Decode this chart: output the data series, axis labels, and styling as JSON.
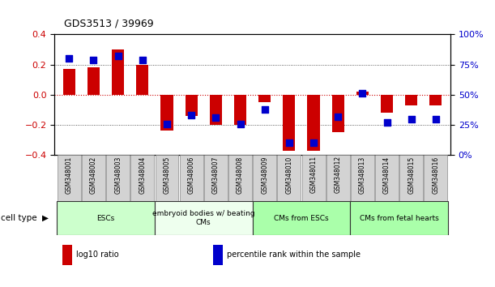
{
  "title": "GDS3513 / 39969",
  "samples": [
    "GSM348001",
    "GSM348002",
    "GSM348003",
    "GSM348004",
    "GSM348005",
    "GSM348006",
    "GSM348007",
    "GSM348008",
    "GSM348009",
    "GSM348010",
    "GSM348011",
    "GSM348012",
    "GSM348013",
    "GSM348014",
    "GSM348015",
    "GSM348016"
  ],
  "log10_ratio": [
    0.17,
    0.18,
    0.3,
    0.2,
    -0.24,
    -0.14,
    -0.2,
    -0.2,
    -0.05,
    -0.37,
    -0.37,
    -0.25,
    0.02,
    -0.12,
    -0.07,
    -0.07
  ],
  "percentile_rank": [
    80,
    79,
    82,
    79,
    26,
    33,
    31,
    26,
    38,
    10,
    10,
    32,
    51,
    27,
    30,
    30
  ],
  "bar_color": "#cc0000",
  "dot_color": "#0000cc",
  "ylim_left": [
    -0.4,
    0.4
  ],
  "ylim_right": [
    0,
    100
  ],
  "yticks_left": [
    -0.4,
    -0.2,
    0.0,
    0.2,
    0.4
  ],
  "yticks_right": [
    0,
    25,
    50,
    75,
    100
  ],
  "ytick_labels_right": [
    "0%",
    "25%",
    "50%",
    "75%",
    "100%"
  ],
  "hline_zero_color": "#cc0000",
  "hline_dotted_color": "#333333",
  "cell_type_groups": [
    {
      "label": "ESCs",
      "start": 0,
      "end": 3,
      "color": "#ccffcc"
    },
    {
      "label": "embryoid bodies w/ beating\nCMs",
      "start": 4,
      "end": 7,
      "color": "#eeffee"
    },
    {
      "label": "CMs from ESCs",
      "start": 8,
      "end": 11,
      "color": "#aaffaa"
    },
    {
      "label": "CMs from fetal hearts",
      "start": 12,
      "end": 15,
      "color": "#aaffaa"
    }
  ],
  "cell_type_label": "cell type",
  "legend_items": [
    {
      "label": "log10 ratio",
      "color": "#cc0000"
    },
    {
      "label": "percentile rank within the sample",
      "color": "#0000cc"
    }
  ],
  "background_color": "#ffffff",
  "bar_width": 0.5,
  "dot_size": 30
}
